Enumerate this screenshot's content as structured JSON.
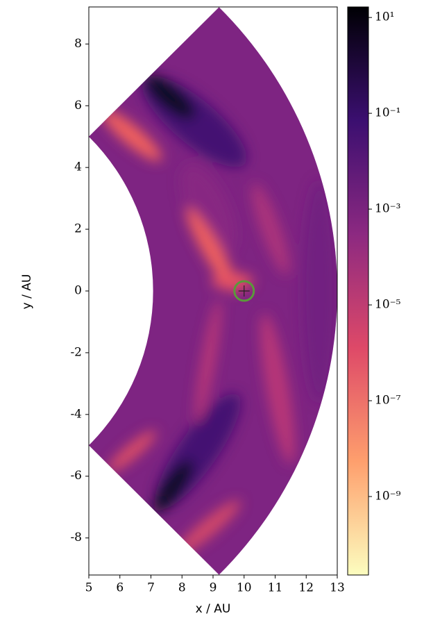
{
  "chart_data": {
    "type": "polar-heatmap",
    "xlabel": "x / AU",
    "ylabel": "y / AU",
    "xlim": [
      5,
      13
    ],
    "ylim": [
      -9.2,
      9.2
    ],
    "xticks": [
      5,
      6,
      7,
      8,
      9,
      10,
      11,
      12,
      13
    ],
    "yticks": [
      -8,
      -6,
      -4,
      -2,
      0,
      2,
      4,
      6,
      8
    ],
    "domain": {
      "r_min": 7.07,
      "r_max": 13,
      "theta_min": -45,
      "theta_max": 45
    },
    "marker": {
      "x": 10,
      "y": 0,
      "color": "#5a9a3a"
    },
    "colorbar": {
      "log_scale": true,
      "clim": [
        2.3e-11,
        16.6
      ],
      "colors": [
        "#fcfdbf",
        "#fe9f6d",
        "#de4968",
        "#8c2981",
        "#3b0f70",
        "#000004"
      ],
      "ticks": [
        {
          "value": 1e-09,
          "label": "10⁻⁹"
        },
        {
          "value": 1e-07,
          "label": "10⁻⁷"
        },
        {
          "value": 1e-05,
          "label": "10⁻⁵"
        },
        {
          "value": 0.001,
          "label": "10⁻³"
        },
        {
          "value": 0.1,
          "label": "10⁻¹"
        },
        {
          "value": 10,
          "label": "10¹"
        }
      ]
    }
  }
}
